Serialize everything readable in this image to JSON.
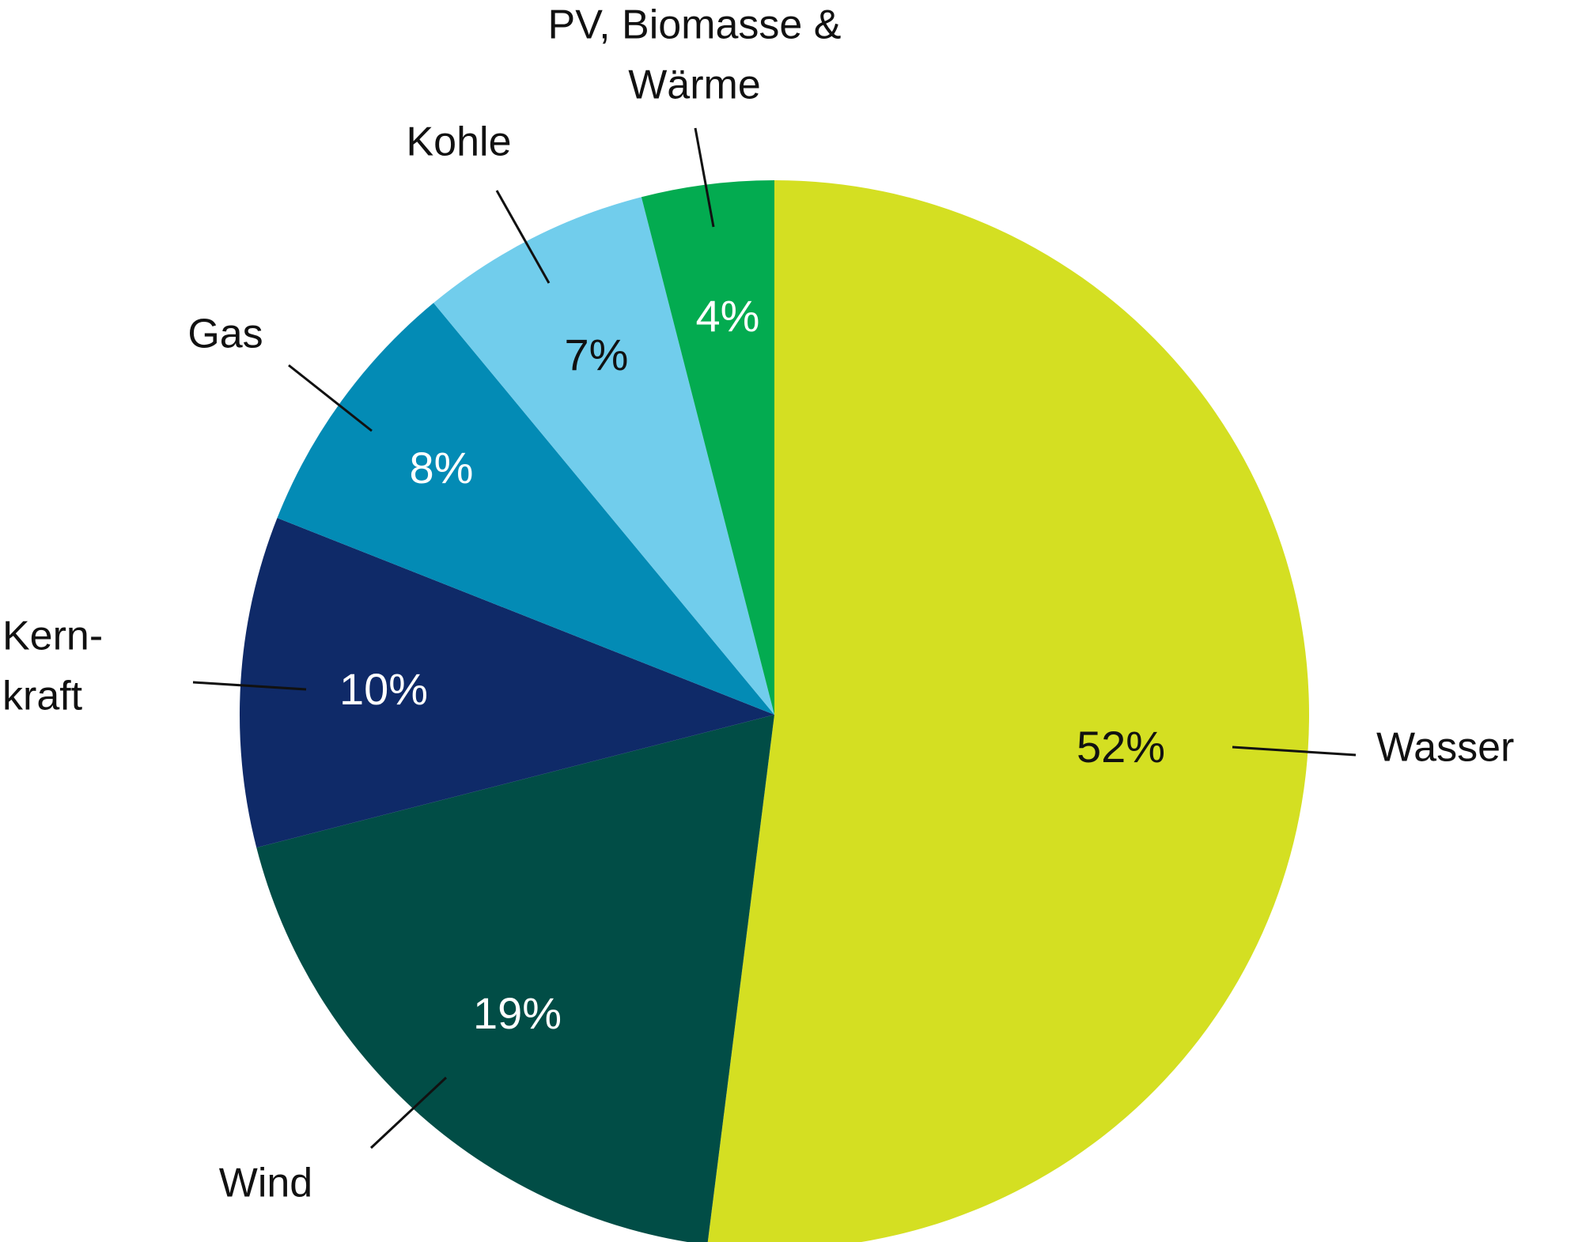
{
  "chart_data": {
    "type": "pie",
    "categories": [
      "Wasser",
      "Wind",
      [
        "Kern-",
        "kraft"
      ],
      "Gas",
      "Kohle",
      [
        "PV, Biomasse &",
        "Wärme"
      ]
    ],
    "values": [
      52,
      19,
      10,
      8,
      7,
      4
    ],
    "value_labels": [
      "52%",
      "19%",
      "10%",
      "8%",
      "7%",
      "4%"
    ],
    "colors": [
      "#d4df22",
      "#014d46",
      "#0f2a68",
      "#038bb5",
      "#71cdec",
      "#03ab50"
    ]
  }
}
